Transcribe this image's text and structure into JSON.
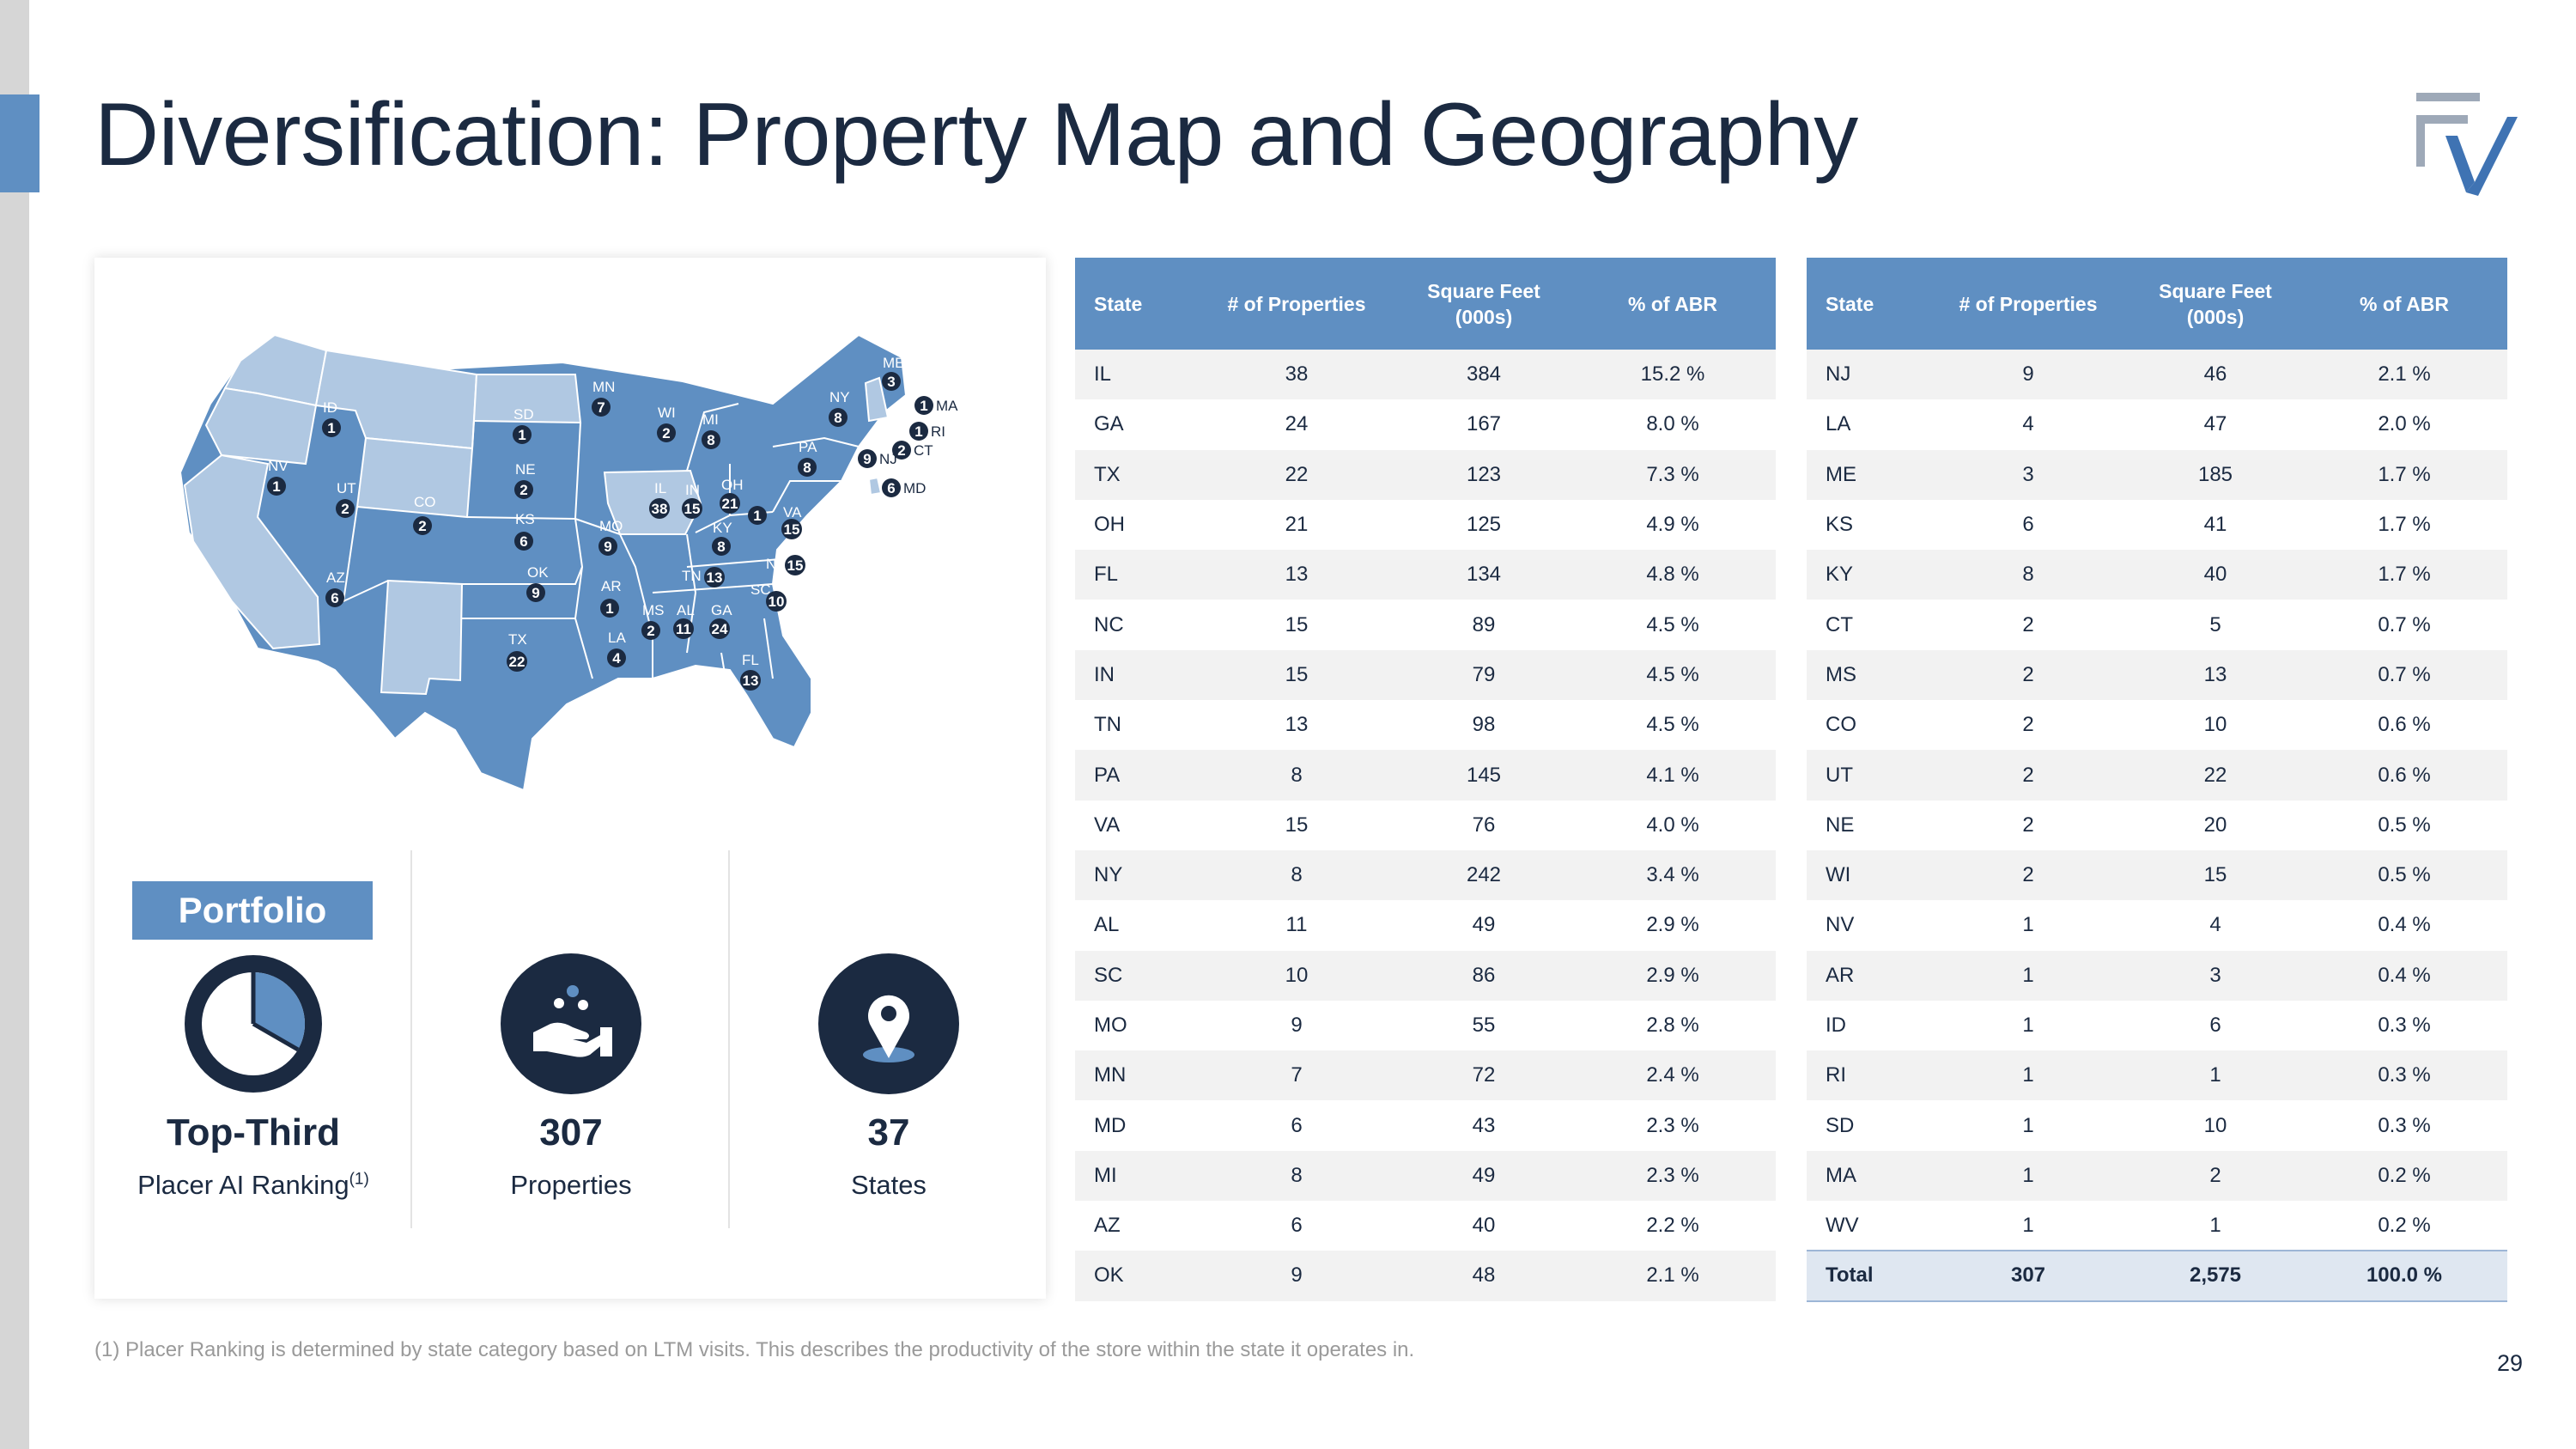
{
  "page": {
    "title": "Diversification: Property Map and Geography",
    "page_number": "29",
    "footnote": "(1) Placer Ranking is determined by state category based on LTM visits. This describes the productivity of the store within the state it operates in."
  },
  "colors": {
    "accent": "#5f8fc2",
    "dark": "#1b2a41",
    "light_state": "#b0c8e2"
  },
  "portfolio": {
    "tag": "Portfolio",
    "ranking_value": "Top-Third",
    "ranking_label": "Placer AI Ranking",
    "ranking_footnote_mark": "(1)",
    "properties_value": "307",
    "properties_label": "Properties",
    "states_value": "37",
    "states_label": "States",
    "icons": [
      "pie-chart-icon",
      "hand-coins-icon",
      "location-pin-icon"
    ]
  },
  "map": {
    "markers": [
      {
        "state": "ME",
        "count": "3"
      },
      {
        "state": "NY",
        "count": "8"
      },
      {
        "state": "MA",
        "count": "1"
      },
      {
        "state": "RI",
        "count": "1"
      },
      {
        "state": "CT",
        "count": "2"
      },
      {
        "state": "NJ",
        "count": "9"
      },
      {
        "state": "MD",
        "count": "6"
      },
      {
        "state": "PA",
        "count": "8"
      },
      {
        "state": "MI",
        "count": "8"
      },
      {
        "state": "WI",
        "count": "2"
      },
      {
        "state": "MN",
        "count": "7"
      },
      {
        "state": "SD",
        "count": "1"
      },
      {
        "state": "ID",
        "count": "1"
      },
      {
        "state": "NE",
        "count": "2"
      },
      {
        "state": "NV",
        "count": "1"
      },
      {
        "state": "UT",
        "count": "2"
      },
      {
        "state": "CO",
        "count": "2"
      },
      {
        "state": "KS",
        "count": "6"
      },
      {
        "state": "IL",
        "count": "38"
      },
      {
        "state": "IN",
        "count": "15"
      },
      {
        "state": "OH",
        "count": "21"
      },
      {
        "state": "WV",
        "count": "1"
      },
      {
        "state": "VA",
        "count": "15"
      },
      {
        "state": "MO",
        "count": "9"
      },
      {
        "state": "KY",
        "count": "8"
      },
      {
        "state": "NC",
        "count": "15"
      },
      {
        "state": "TN",
        "count": "13"
      },
      {
        "state": "OK",
        "count": "9"
      },
      {
        "state": "AR",
        "count": "1"
      },
      {
        "state": "AZ",
        "count": "6"
      },
      {
        "state": "SC",
        "count": "10"
      },
      {
        "state": "MS",
        "count": "2"
      },
      {
        "state": "AL",
        "count": "11"
      },
      {
        "state": "GA",
        "count": "24"
      },
      {
        "state": "TX",
        "count": "22"
      },
      {
        "state": "LA",
        "count": "4"
      },
      {
        "state": "FL",
        "count": "13"
      }
    ]
  },
  "table_headers": {
    "state": "State",
    "properties": "# of Properties",
    "square_feet_1": "Square Feet",
    "square_feet_2": "(000s)",
    "abr": "% of ABR"
  },
  "table_left": [
    {
      "state": "IL",
      "properties": "38",
      "sqft": "384",
      "abr": "15.2 %"
    },
    {
      "state": "GA",
      "properties": "24",
      "sqft": "167",
      "abr": "8.0 %"
    },
    {
      "state": "TX",
      "properties": "22",
      "sqft": "123",
      "abr": "7.3 %"
    },
    {
      "state": "OH",
      "properties": "21",
      "sqft": "125",
      "abr": "4.9 %"
    },
    {
      "state": "FL",
      "properties": "13",
      "sqft": "134",
      "abr": "4.8 %"
    },
    {
      "state": "NC",
      "properties": "15",
      "sqft": "89",
      "abr": "4.5 %"
    },
    {
      "state": "IN",
      "properties": "15",
      "sqft": "79",
      "abr": "4.5 %"
    },
    {
      "state": "TN",
      "properties": "13",
      "sqft": "98",
      "abr": "4.5 %"
    },
    {
      "state": "PA",
      "properties": "8",
      "sqft": "145",
      "abr": "4.1 %"
    },
    {
      "state": "VA",
      "properties": "15",
      "sqft": "76",
      "abr": "4.0 %"
    },
    {
      "state": "NY",
      "properties": "8",
      "sqft": "242",
      "abr": "3.4 %"
    },
    {
      "state": "AL",
      "properties": "11",
      "sqft": "49",
      "abr": "2.9 %"
    },
    {
      "state": "SC",
      "properties": "10",
      "sqft": "86",
      "abr": "2.9 %"
    },
    {
      "state": "MO",
      "properties": "9",
      "sqft": "55",
      "abr": "2.8 %"
    },
    {
      "state": "MN",
      "properties": "7",
      "sqft": "72",
      "abr": "2.4 %"
    },
    {
      "state": "MD",
      "properties": "6",
      "sqft": "43",
      "abr": "2.3 %"
    },
    {
      "state": "MI",
      "properties": "8",
      "sqft": "49",
      "abr": "2.3 %"
    },
    {
      "state": "AZ",
      "properties": "6",
      "sqft": "40",
      "abr": "2.2 %"
    },
    {
      "state": "OK",
      "properties": "9",
      "sqft": "48",
      "abr": "2.1 %"
    }
  ],
  "table_right": [
    {
      "state": "NJ",
      "properties": "9",
      "sqft": "46",
      "abr": "2.1 %"
    },
    {
      "state": "LA",
      "properties": "4",
      "sqft": "47",
      "abr": "2.0 %"
    },
    {
      "state": "ME",
      "properties": "3",
      "sqft": "185",
      "abr": "1.7 %"
    },
    {
      "state": "KS",
      "properties": "6",
      "sqft": "41",
      "abr": "1.7 %"
    },
    {
      "state": "KY",
      "properties": "8",
      "sqft": "40",
      "abr": "1.7 %"
    },
    {
      "state": "CT",
      "properties": "2",
      "sqft": "5",
      "abr": "0.7 %"
    },
    {
      "state": "MS",
      "properties": "2",
      "sqft": "13",
      "abr": "0.7 %"
    },
    {
      "state": "CO",
      "properties": "2",
      "sqft": "10",
      "abr": "0.6 %"
    },
    {
      "state": "UT",
      "properties": "2",
      "sqft": "22",
      "abr": "0.6 %"
    },
    {
      "state": "NE",
      "properties": "2",
      "sqft": "20",
      "abr": "0.5 %"
    },
    {
      "state": "WI",
      "properties": "2",
      "sqft": "15",
      "abr": "0.5 %"
    },
    {
      "state": "NV",
      "properties": "1",
      "sqft": "4",
      "abr": "0.4 %"
    },
    {
      "state": "AR",
      "properties": "1",
      "sqft": "3",
      "abr": "0.4 %"
    },
    {
      "state": "ID",
      "properties": "1",
      "sqft": "6",
      "abr": "0.3 %"
    },
    {
      "state": "RI",
      "properties": "1",
      "sqft": "1",
      "abr": "0.3 %"
    },
    {
      "state": "SD",
      "properties": "1",
      "sqft": "10",
      "abr": "0.3 %"
    },
    {
      "state": "MA",
      "properties": "1",
      "sqft": "2",
      "abr": "0.2 %"
    },
    {
      "state": "WV",
      "properties": "1",
      "sqft": "1",
      "abr": "0.2 %"
    }
  ],
  "table_total": {
    "state": "Total",
    "properties": "307",
    "sqft": "2,575",
    "abr": "100.0 %"
  }
}
